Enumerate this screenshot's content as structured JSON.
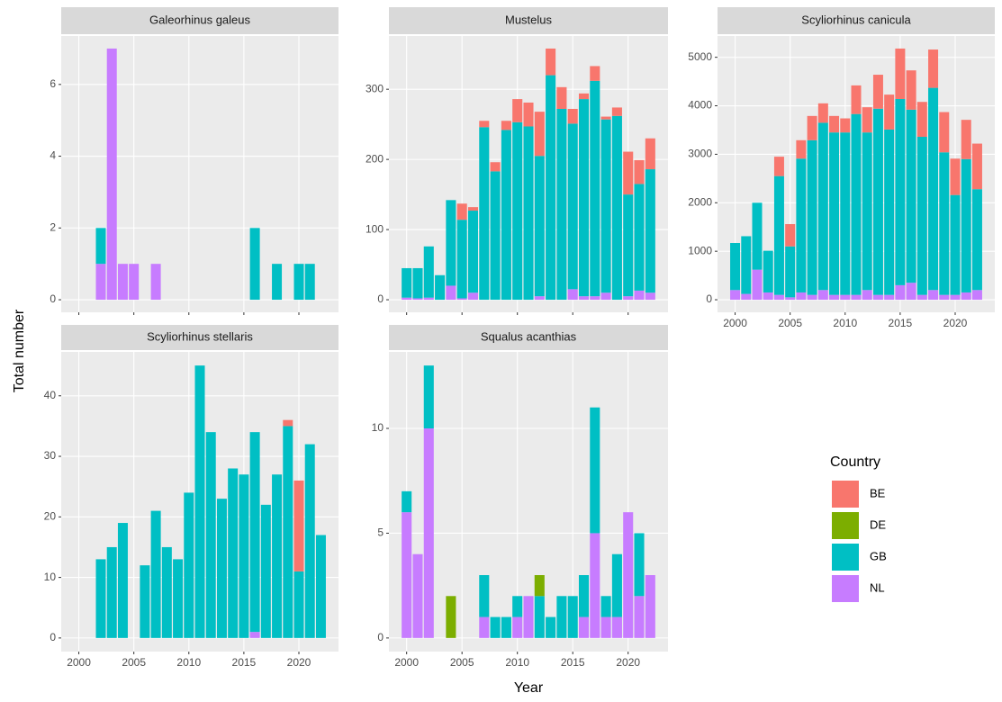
{
  "xlabel": "Year",
  "ylabel": "Total number",
  "legend": {
    "title": "Country"
  },
  "chart_data": [
    {
      "type": "bar",
      "stacked": true,
      "title": "Galeorhinus galeus",
      "x": [
        2000,
        2001,
        2002,
        2003,
        2004,
        2005,
        2006,
        2007,
        2008,
        2009,
        2010,
        2011,
        2012,
        2013,
        2014,
        2015,
        2016,
        2017,
        2018,
        2019,
        2020,
        2021,
        2022
      ],
      "series": [
        {
          "name": "BE",
          "color": "#F8766D",
          "values": [
            0,
            0,
            0,
            0,
            0,
            0,
            0,
            0,
            0,
            0,
            0,
            0,
            0,
            0,
            0,
            0,
            0,
            0,
            0,
            0,
            0,
            0,
            0
          ]
        },
        {
          "name": "DE",
          "color": "#7CAE00",
          "values": [
            0,
            0,
            0,
            0,
            0,
            0,
            0,
            0,
            0,
            0,
            0,
            0,
            0,
            0,
            0,
            0,
            0,
            0,
            0,
            0,
            0,
            0,
            0
          ]
        },
        {
          "name": "GB",
          "color": "#00BFC4",
          "values": [
            0,
            0,
            1,
            0,
            0,
            0,
            0,
            0,
            0,
            0,
            0,
            0,
            0,
            0,
            0,
            0,
            2,
            0,
            1,
            0,
            1,
            1,
            0
          ]
        },
        {
          "name": "NL",
          "color": "#C77CFF",
          "values": [
            0,
            0,
            1,
            7,
            1,
            1,
            0,
            1,
            0,
            0,
            0,
            0,
            0,
            0,
            0,
            0,
            0,
            0,
            0,
            0,
            0,
            0,
            0
          ]
        }
      ],
      "xlim": [
        1998.4,
        2023.6
      ],
      "xticks": [
        2000,
        2005,
        2010,
        2015,
        2020
      ],
      "ylim": [
        -0.35,
        7.35
      ],
      "yticks": [
        0,
        2,
        4,
        6
      ],
      "grid": true
    },
    {
      "type": "bar",
      "stacked": true,
      "title": "Mustelus",
      "x": [
        2000,
        2001,
        2002,
        2003,
        2004,
        2005,
        2006,
        2007,
        2008,
        2009,
        2010,
        2011,
        2012,
        2013,
        2014,
        2015,
        2016,
        2017,
        2018,
        2019,
        2020,
        2021,
        2022
      ],
      "series": [
        {
          "name": "BE",
          "color": "#F8766D",
          "values": [
            0,
            0,
            0,
            0,
            0,
            23,
            5,
            9,
            13,
            13,
            33,
            34,
            63,
            38,
            31,
            21,
            8,
            21,
            4,
            12,
            61,
            34,
            44
          ]
        },
        {
          "name": "DE",
          "color": "#7CAE00",
          "values": [
            0,
            0,
            0,
            0,
            0,
            0,
            0,
            0,
            0,
            0,
            0,
            0,
            0,
            0,
            0,
            0,
            0,
            0,
            0,
            0,
            0,
            0,
            0
          ]
        },
        {
          "name": "GB",
          "color": "#00BFC4",
          "values": [
            42,
            43,
            73,
            35,
            122,
            112,
            117,
            246,
            183,
            242,
            253,
            247,
            200,
            320,
            272,
            236,
            281,
            307,
            247,
            262,
            145,
            152,
            176
          ]
        },
        {
          "name": "NL",
          "color": "#C77CFF",
          "values": [
            3,
            2,
            3,
            0,
            20,
            2,
            10,
            0,
            0,
            0,
            0,
            0,
            5,
            0,
            0,
            15,
            5,
            5,
            10,
            0,
            5,
            13,
            10
          ]
        }
      ],
      "xlim": [
        1998.4,
        2023.6
      ],
      "xticks": [
        2000,
        2005,
        2010,
        2015,
        2020
      ],
      "ylim": [
        -17.9,
        375.9
      ],
      "yticks": [
        0,
        100,
        200,
        300
      ],
      "grid": true
    },
    {
      "type": "bar",
      "stacked": true,
      "title": "Scyliorhinus canicula",
      "x": [
        2000,
        2001,
        2002,
        2003,
        2004,
        2005,
        2006,
        2007,
        2008,
        2009,
        2010,
        2011,
        2012,
        2013,
        2014,
        2015,
        2016,
        2017,
        2018,
        2019,
        2020,
        2021,
        2022
      ],
      "series": [
        {
          "name": "BE",
          "color": "#F8766D",
          "values": [
            0,
            0,
            0,
            0,
            400,
            460,
            380,
            500,
            400,
            340,
            290,
            590,
            520,
            700,
            720,
            1040,
            810,
            720,
            790,
            830,
            750,
            810,
            940
          ]
        },
        {
          "name": "DE",
          "color": "#7CAE00",
          "values": [
            0,
            0,
            0,
            0,
            0,
            0,
            0,
            0,
            0,
            0,
            0,
            0,
            0,
            0,
            0,
            0,
            0,
            0,
            0,
            0,
            0,
            0,
            0
          ]
        },
        {
          "name": "GB",
          "color": "#00BFC4",
          "values": [
            970,
            1190,
            1380,
            860,
            2450,
            1050,
            2760,
            3190,
            3450,
            3350,
            3350,
            3730,
            3250,
            3840,
            3410,
            3840,
            3570,
            3260,
            4170,
            2940,
            2060,
            2750,
            2080
          ]
        },
        {
          "name": "NL",
          "color": "#C77CFF",
          "values": [
            200,
            120,
            620,
            150,
            100,
            50,
            150,
            100,
            200,
            100,
            100,
            100,
            200,
            100,
            100,
            300,
            350,
            100,
            200,
            100,
            100,
            150,
            200
          ]
        }
      ],
      "xlim": [
        1998.4,
        2023.6
      ],
      "xticks": [
        2000,
        2005,
        2010,
        2015,
        2020
      ],
      "ylim": [
        -259,
        5439
      ],
      "yticks": [
        0,
        1000,
        2000,
        3000,
        4000,
        5000
      ],
      "grid": true
    },
    {
      "type": "bar",
      "stacked": true,
      "title": "Scyliorhinus stellaris",
      "x": [
        2000,
        2001,
        2002,
        2003,
        2004,
        2005,
        2006,
        2007,
        2008,
        2009,
        2010,
        2011,
        2012,
        2013,
        2014,
        2015,
        2016,
        2017,
        2018,
        2019,
        2020,
        2021,
        2022
      ],
      "series": [
        {
          "name": "BE",
          "color": "#F8766D",
          "values": [
            0,
            0,
            0,
            0,
            0,
            0,
            0,
            0,
            0,
            0,
            0,
            0,
            0,
            0,
            0,
            0,
            0,
            0,
            0,
            1,
            15,
            0,
            0
          ]
        },
        {
          "name": "DE",
          "color": "#7CAE00",
          "values": [
            0,
            0,
            0,
            0,
            0,
            0,
            0,
            0,
            0,
            0,
            0,
            0,
            0,
            0,
            0,
            0,
            0,
            0,
            0,
            0,
            0,
            0,
            0
          ]
        },
        {
          "name": "GB",
          "color": "#00BFC4",
          "values": [
            0,
            0,
            13,
            15,
            19,
            0,
            12,
            21,
            15,
            13,
            24,
            45,
            34,
            23,
            28,
            27,
            33,
            22,
            27,
            35,
            11,
            32,
            17
          ]
        },
        {
          "name": "NL",
          "color": "#C77CFF",
          "values": [
            0,
            0,
            0,
            0,
            0,
            0,
            0,
            0,
            0,
            0,
            0,
            0,
            0,
            0,
            0,
            0,
            1,
            0,
            0,
            0,
            0,
            0,
            0
          ]
        }
      ],
      "xlim": [
        1998.4,
        2023.6
      ],
      "xticks": [
        2000,
        2005,
        2010,
        2015,
        2020
      ],
      "ylim": [
        -2.25,
        47.25
      ],
      "yticks": [
        0,
        10,
        20,
        30,
        40
      ],
      "grid": true
    },
    {
      "type": "bar",
      "stacked": true,
      "title": "Squalus acanthias",
      "x": [
        2000,
        2001,
        2002,
        2003,
        2004,
        2005,
        2006,
        2007,
        2008,
        2009,
        2010,
        2011,
        2012,
        2013,
        2014,
        2015,
        2016,
        2017,
        2018,
        2019,
        2020,
        2021,
        2022
      ],
      "series": [
        {
          "name": "BE",
          "color": "#F8766D",
          "values": [
            0,
            0,
            0,
            0,
            0,
            0,
            0,
            0,
            0,
            0,
            0,
            0,
            0,
            0,
            0,
            0,
            0,
            0,
            0,
            0,
            0,
            0,
            0
          ]
        },
        {
          "name": "DE",
          "color": "#7CAE00",
          "values": [
            0,
            0,
            0,
            0,
            2,
            0,
            0,
            0,
            0,
            0,
            0,
            0,
            1,
            0,
            0,
            0,
            0,
            0,
            0,
            0,
            0,
            0,
            0
          ]
        },
        {
          "name": "GB",
          "color": "#00BFC4",
          "values": [
            1,
            0,
            3,
            0,
            0,
            0,
            0,
            2,
            1,
            1,
            1,
            0,
            2,
            1,
            2,
            2,
            2,
            6,
            1,
            3,
            0,
            3,
            0
          ]
        },
        {
          "name": "NL",
          "color": "#C77CFF",
          "values": [
            6,
            4,
            10,
            0,
            0,
            0,
            0,
            1,
            0,
            0,
            1,
            2,
            0,
            0,
            0,
            0,
            1,
            5,
            1,
            1,
            6,
            2,
            3
          ]
        }
      ],
      "xlim": [
        1998.4,
        2023.6
      ],
      "xticks": [
        2000,
        2005,
        2010,
        2015,
        2020
      ],
      "ylim": [
        -0.65,
        13.65
      ],
      "yticks": [
        0,
        5,
        10
      ],
      "grid": true
    }
  ]
}
